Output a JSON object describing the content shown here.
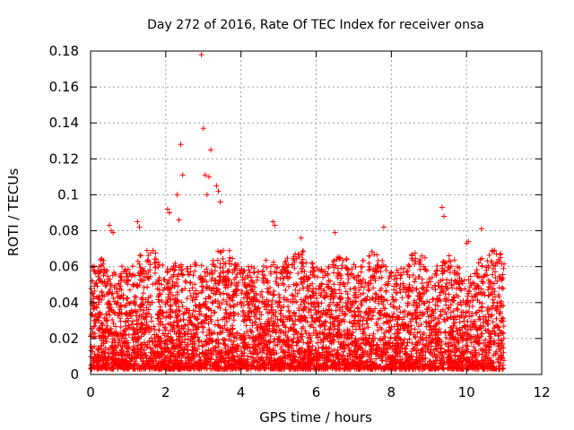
{
  "chart_data": {
    "type": "scatter",
    "title": "Day 272 of 2016, Rate Of TEC Index for receiver onsa",
    "xlabel": "GPS time / hours",
    "ylabel": "ROTI / TECUs",
    "xlim": [
      0,
      12
    ],
    "ylim": [
      0,
      0.18
    ],
    "xticks": [
      "0",
      "2",
      "4",
      "6",
      "8",
      "10",
      "12"
    ],
    "yticks": [
      "0",
      "0.02",
      "0.04",
      "0.06",
      "0.08",
      "0.1",
      "0.12",
      "0.14",
      "0.16",
      "0.18"
    ],
    "grid": true,
    "marker": "+",
    "color": "#ff0000",
    "series": [
      {
        "name": "ROTI",
        "x": [
          0.5,
          0.55,
          0.6,
          1.25,
          1.3,
          2.05,
          2.1,
          2.3,
          2.35,
          2.4,
          2.45,
          2.95,
          3.0,
          3.05,
          3.1,
          3.15,
          3.2,
          3.35,
          3.4,
          3.45,
          4.85,
          4.9,
          5.6,
          6.5,
          7.8,
          9.35,
          9.4,
          10.0,
          10.05,
          10.4
        ],
        "y": [
          0.083,
          0.08,
          0.079,
          0.085,
          0.082,
          0.092,
          0.09,
          0.1,
          0.086,
          0.128,
          0.111,
          0.178,
          0.137,
          0.111,
          0.1,
          0.11,
          0.125,
          0.105,
          0.102,
          0.096,
          0.085,
          0.083,
          0.076,
          0.079,
          0.082,
          0.093,
          0.088,
          0.073,
          0.074,
          0.081
        ]
      }
    ],
    "data_extent_x": [
      0,
      11
    ],
    "background_band": {
      "x_range": [
        0,
        11
      ],
      "y_range": [
        0.003,
        0.06
      ],
      "note": "dense cloud of points"
    }
  }
}
